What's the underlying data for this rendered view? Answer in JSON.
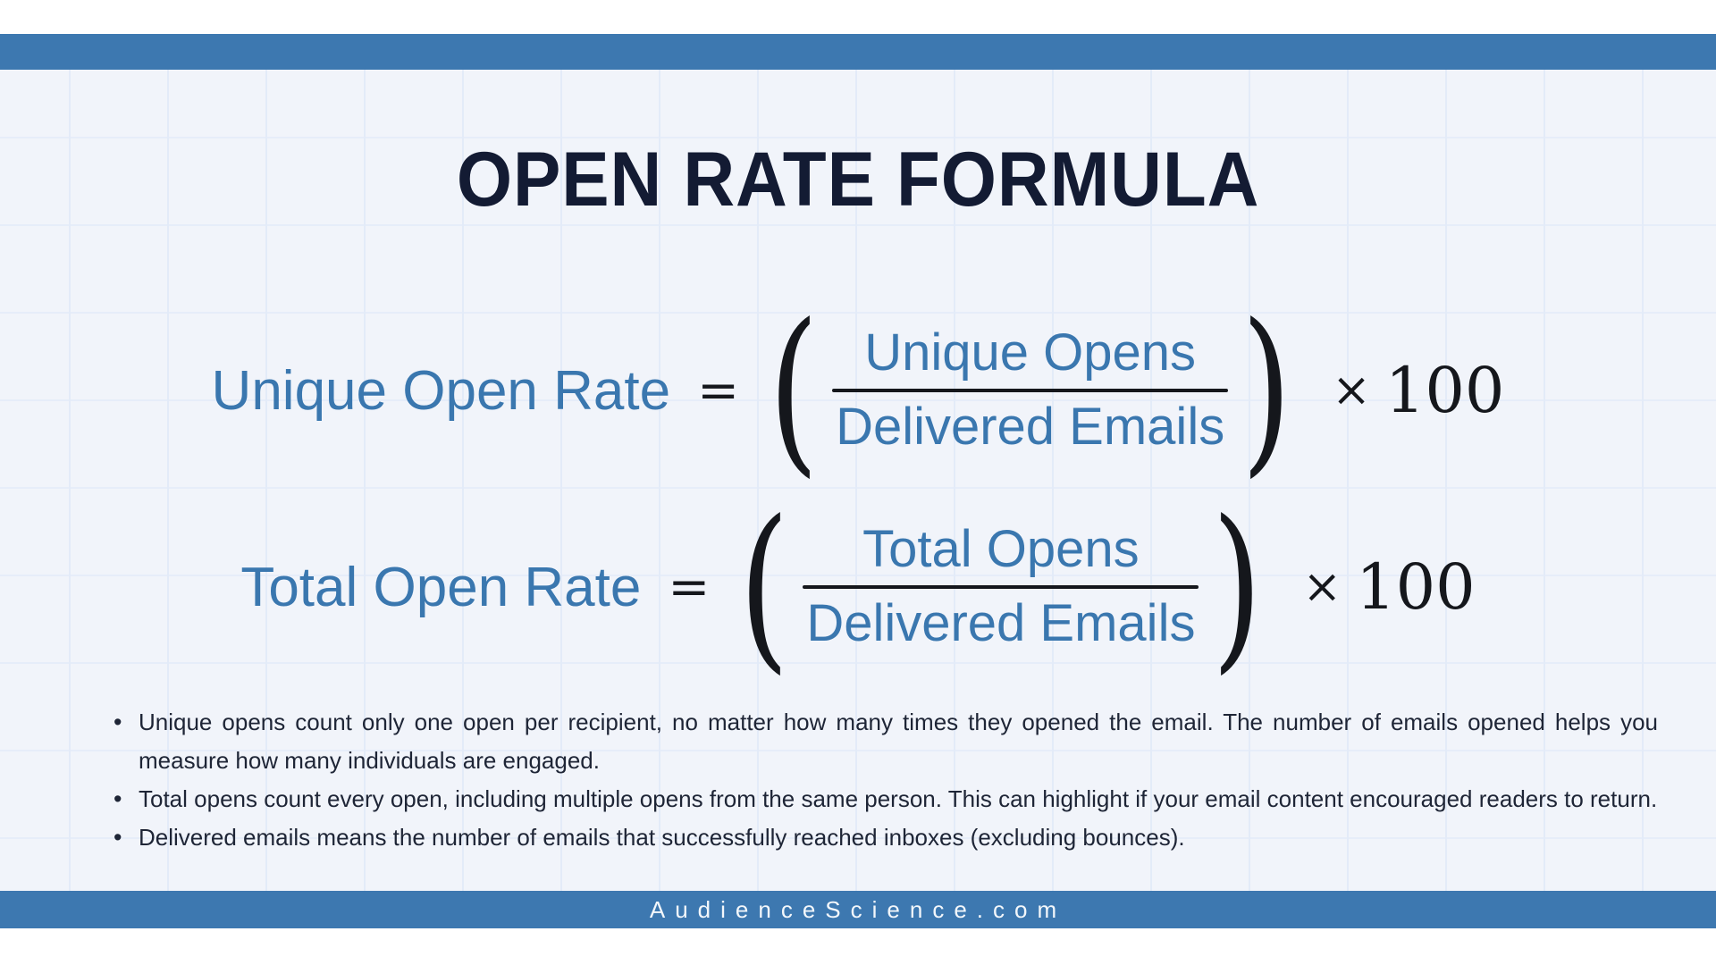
{
  "colors": {
    "accent_blue": "#3d78b0",
    "formula_blue": "#3a77af",
    "title_navy": "#131b33",
    "math_black": "#15171c",
    "body_text": "#1e2536",
    "background": "#f1f4fa"
  },
  "header": {
    "title": "OPEN RATE FORMULA"
  },
  "formulas": [
    {
      "label": "Unique Open Rate",
      "equals": "=",
      "open_paren": "(",
      "numerator": "Unique Opens",
      "denominator": "Delivered Emails",
      "close_paren": ")",
      "times": "×",
      "factor": "100"
    },
    {
      "label": "Total Open Rate",
      "equals": "=",
      "open_paren": "(",
      "numerator": "Total Opens",
      "denominator": "Delivered Emails",
      "close_paren": ")",
      "times": "×",
      "factor": "100"
    }
  ],
  "notes": [
    "Unique opens count only one open per recipient, no matter how many times they opened the email. The number of emails opened helps you measure how many individuals are engaged.",
    "Total opens count every open, including multiple opens from the same person. This can highlight if your email content encouraged readers to return.",
    "Delivered emails means the number of emails that successfully reached inboxes (excluding bounces)."
  ],
  "footer": {
    "website": "AudienceScience.com"
  }
}
